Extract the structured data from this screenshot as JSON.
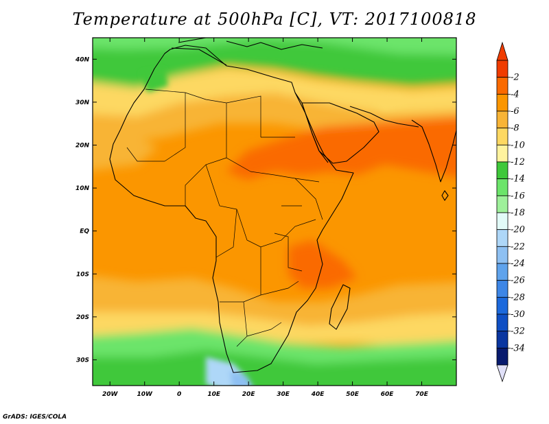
{
  "title": "Temperature at 500hPa [C], VT: 2017100818",
  "credit": "GrADS: IGES/COLA",
  "map": {
    "region": "Africa",
    "projection": "latlon",
    "lon_range": [
      -25,
      80
    ],
    "lat_range": [
      -36,
      45
    ],
    "x_ticks": [
      {
        "value": -20,
        "label": "20W"
      },
      {
        "value": -10,
        "label": "10W"
      },
      {
        "value": 0,
        "label": "0"
      },
      {
        "value": 10,
        "label": "10E"
      },
      {
        "value": 20,
        "label": "20E"
      },
      {
        "value": 30,
        "label": "30E"
      },
      {
        "value": 40,
        "label": "40E"
      },
      {
        "value": 50,
        "label": "50E"
      },
      {
        "value": 60,
        "label": "60E"
      },
      {
        "value": 70,
        "label": "70E"
      }
    ],
    "y_ticks": [
      {
        "value": 40,
        "label": "40N"
      },
      {
        "value": 30,
        "label": "30N"
      },
      {
        "value": 20,
        "label": "20N"
      },
      {
        "value": 10,
        "label": "10N"
      },
      {
        "value": 0,
        "label": "EQ"
      },
      {
        "value": -10,
        "label": "10S"
      },
      {
        "value": -20,
        "label": "20S"
      },
      {
        "value": -30,
        "label": "30S"
      }
    ]
  },
  "colorbar": {
    "levels": [
      "-2",
      "-4",
      "-6",
      "-8",
      "-10",
      "-12",
      "-14",
      "-16",
      "-18",
      "-20",
      "-22",
      "-24",
      "-26",
      "-28",
      "-30",
      "-32",
      "-34"
    ],
    "colors": [
      "#f03c00",
      "#fa6a00",
      "#fb9600",
      "#f8b436",
      "#fdd862",
      "#fff39e",
      "#3fc83a",
      "#6ce46a",
      "#9ef09a",
      "#e2fbf8",
      "#aed7f8",
      "#8ec0f2",
      "#5fa3ec",
      "#3d86e6",
      "#1c69dc",
      "#0f4fc4",
      "#0a36a0",
      "#081a6e"
    ],
    "top_triangle_color": "#f03c00",
    "bottom_triangle_color": "#e0e0f8"
  }
}
